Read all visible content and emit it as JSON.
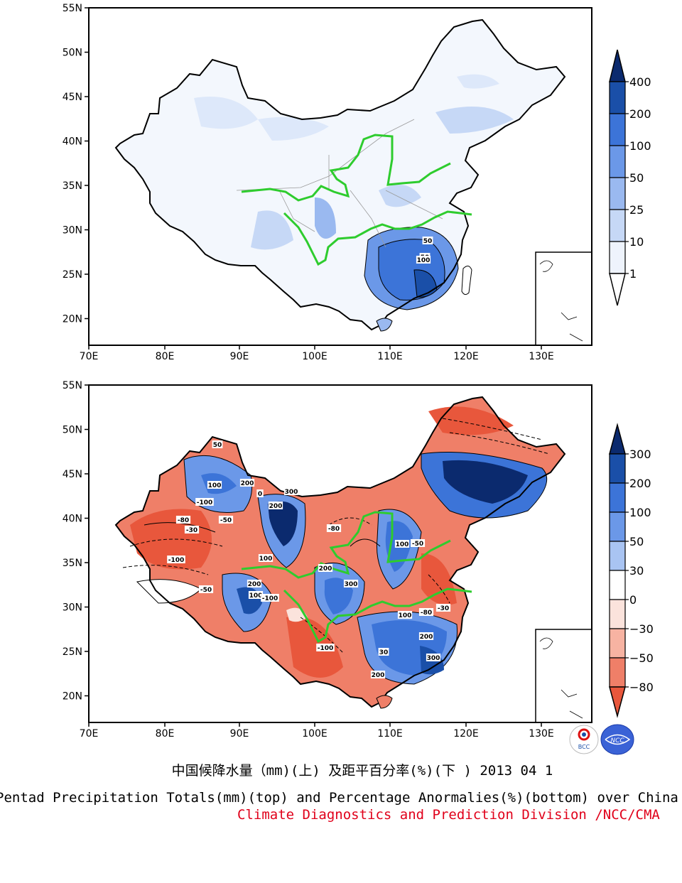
{
  "maps": [
    {
      "id": "top",
      "lat_labels": [
        "55N",
        "50N",
        "45N",
        "40N",
        "35N",
        "30N",
        "25N",
        "20N"
      ],
      "lon_labels": [
        "70E",
        "80E",
        "90E",
        "100E",
        "110E",
        "120E",
        "130E"
      ],
      "colorbar": {
        "labels": [
          "400",
          "200",
          "100",
          "50",
          "25",
          "10",
          "1"
        ],
        "colors": [
          "#0b2a6e",
          "#1a4fa8",
          "#3c74d8",
          "#6b98e8",
          "#9ab9f0",
          "#c6d8f6",
          "#eef3fc",
          "#ffffff"
        ]
      },
      "contour_labels": [
        "50",
        "50",
        "100"
      ]
    },
    {
      "id": "bottom",
      "lat_labels": [
        "55N",
        "50N",
        "45N",
        "40N",
        "35N",
        "30N",
        "25N",
        "20N"
      ],
      "lon_labels": [
        "70E",
        "80E",
        "90E",
        "100E",
        "110E",
        "120E",
        "130E"
      ],
      "colorbar": {
        "labels": [
          "300",
          "200",
          "100",
          "50",
          "30",
          "0",
          "−30",
          "−50",
          "−80"
        ],
        "colors": [
          "#0b2a6e",
          "#1a4fa8",
          "#3c74d8",
          "#6b98e8",
          "#a9c4f2",
          "#ffffff",
          "#fbe3dc",
          "#f7b3a2",
          "#ef7f68",
          "#e8573c"
        ]
      },
      "contour_labels": [
        "50",
        "100",
        "200",
        "-100",
        "-80",
        "-50",
        "-30",
        "0",
        "200",
        "300",
        "100",
        "-100",
        "200",
        "100",
        "-50",
        "-100",
        "200",
        "300",
        "100",
        "200",
        "30",
        "-80",
        "200",
        "-50",
        "100",
        "300",
        "-100",
        "-80",
        "-30"
      ]
    }
  ],
  "caption": {
    "chinese": "中国候降水量（mm)(上) 及距平百分率(%)(下 ) 2013 04 1",
    "english": "Pentad Precipitation Totals(mm)(top) and Percentage Anormalies(%)(bottom) over China",
    "division": "Climate Diagnostics and Prediction Division /NCC/CMA"
  },
  "logos": {
    "left": "BCC",
    "right": "NCC"
  },
  "colors": {
    "river": "#2ecc2e",
    "caption_red": "#e0001a"
  }
}
